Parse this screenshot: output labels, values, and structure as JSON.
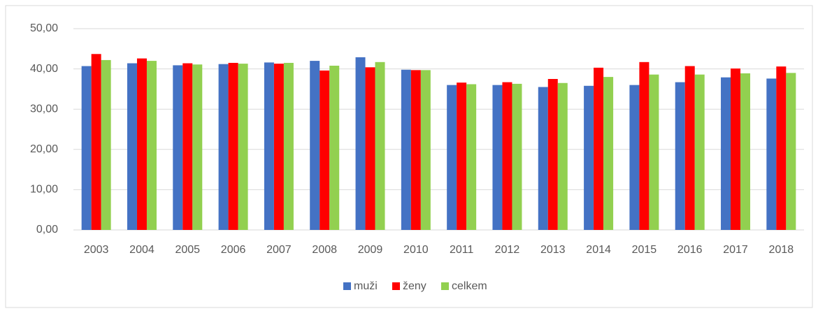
{
  "chart_data": {
    "type": "bar",
    "categories": [
      "2003",
      "2004",
      "2005",
      "2006",
      "2007",
      "2008",
      "2009",
      "2010",
      "2011",
      "2012",
      "2013",
      "2014",
      "2015",
      "2016",
      "2017",
      "2018"
    ],
    "series": [
      {
        "name": "muži",
        "color": "#4472c4",
        "values": [
          40.7,
          41.4,
          40.9,
          41.2,
          41.6,
          42.0,
          42.9,
          39.8,
          36.0,
          36.0,
          35.5,
          35.8,
          36.0,
          36.7,
          37.9,
          37.6
        ]
      },
      {
        "name": "ženy",
        "color": "#ff0000",
        "values": [
          43.7,
          42.6,
          41.4,
          41.5,
          41.3,
          39.6,
          40.4,
          39.7,
          36.6,
          36.7,
          37.5,
          40.3,
          41.7,
          40.7,
          40.1,
          40.6
        ]
      },
      {
        "name": "celkem",
        "color": "#92d050",
        "values": [
          42.2,
          42.0,
          41.1,
          41.3,
          41.5,
          40.8,
          41.7,
          39.7,
          36.2,
          36.3,
          36.5,
          38.0,
          38.6,
          38.6,
          38.9,
          39.0
        ]
      }
    ],
    "ylim": [
      0,
      50
    ],
    "yticks": [
      {
        "value": 0,
        "label": "0,00"
      },
      {
        "value": 10,
        "label": "10,00"
      },
      {
        "value": 20,
        "label": "20,00"
      },
      {
        "value": 30,
        "label": "30,00"
      },
      {
        "value": 40,
        "label": "40,00"
      },
      {
        "value": 50,
        "label": "50,00"
      }
    ],
    "grid": true,
    "legend": "bottom"
  }
}
